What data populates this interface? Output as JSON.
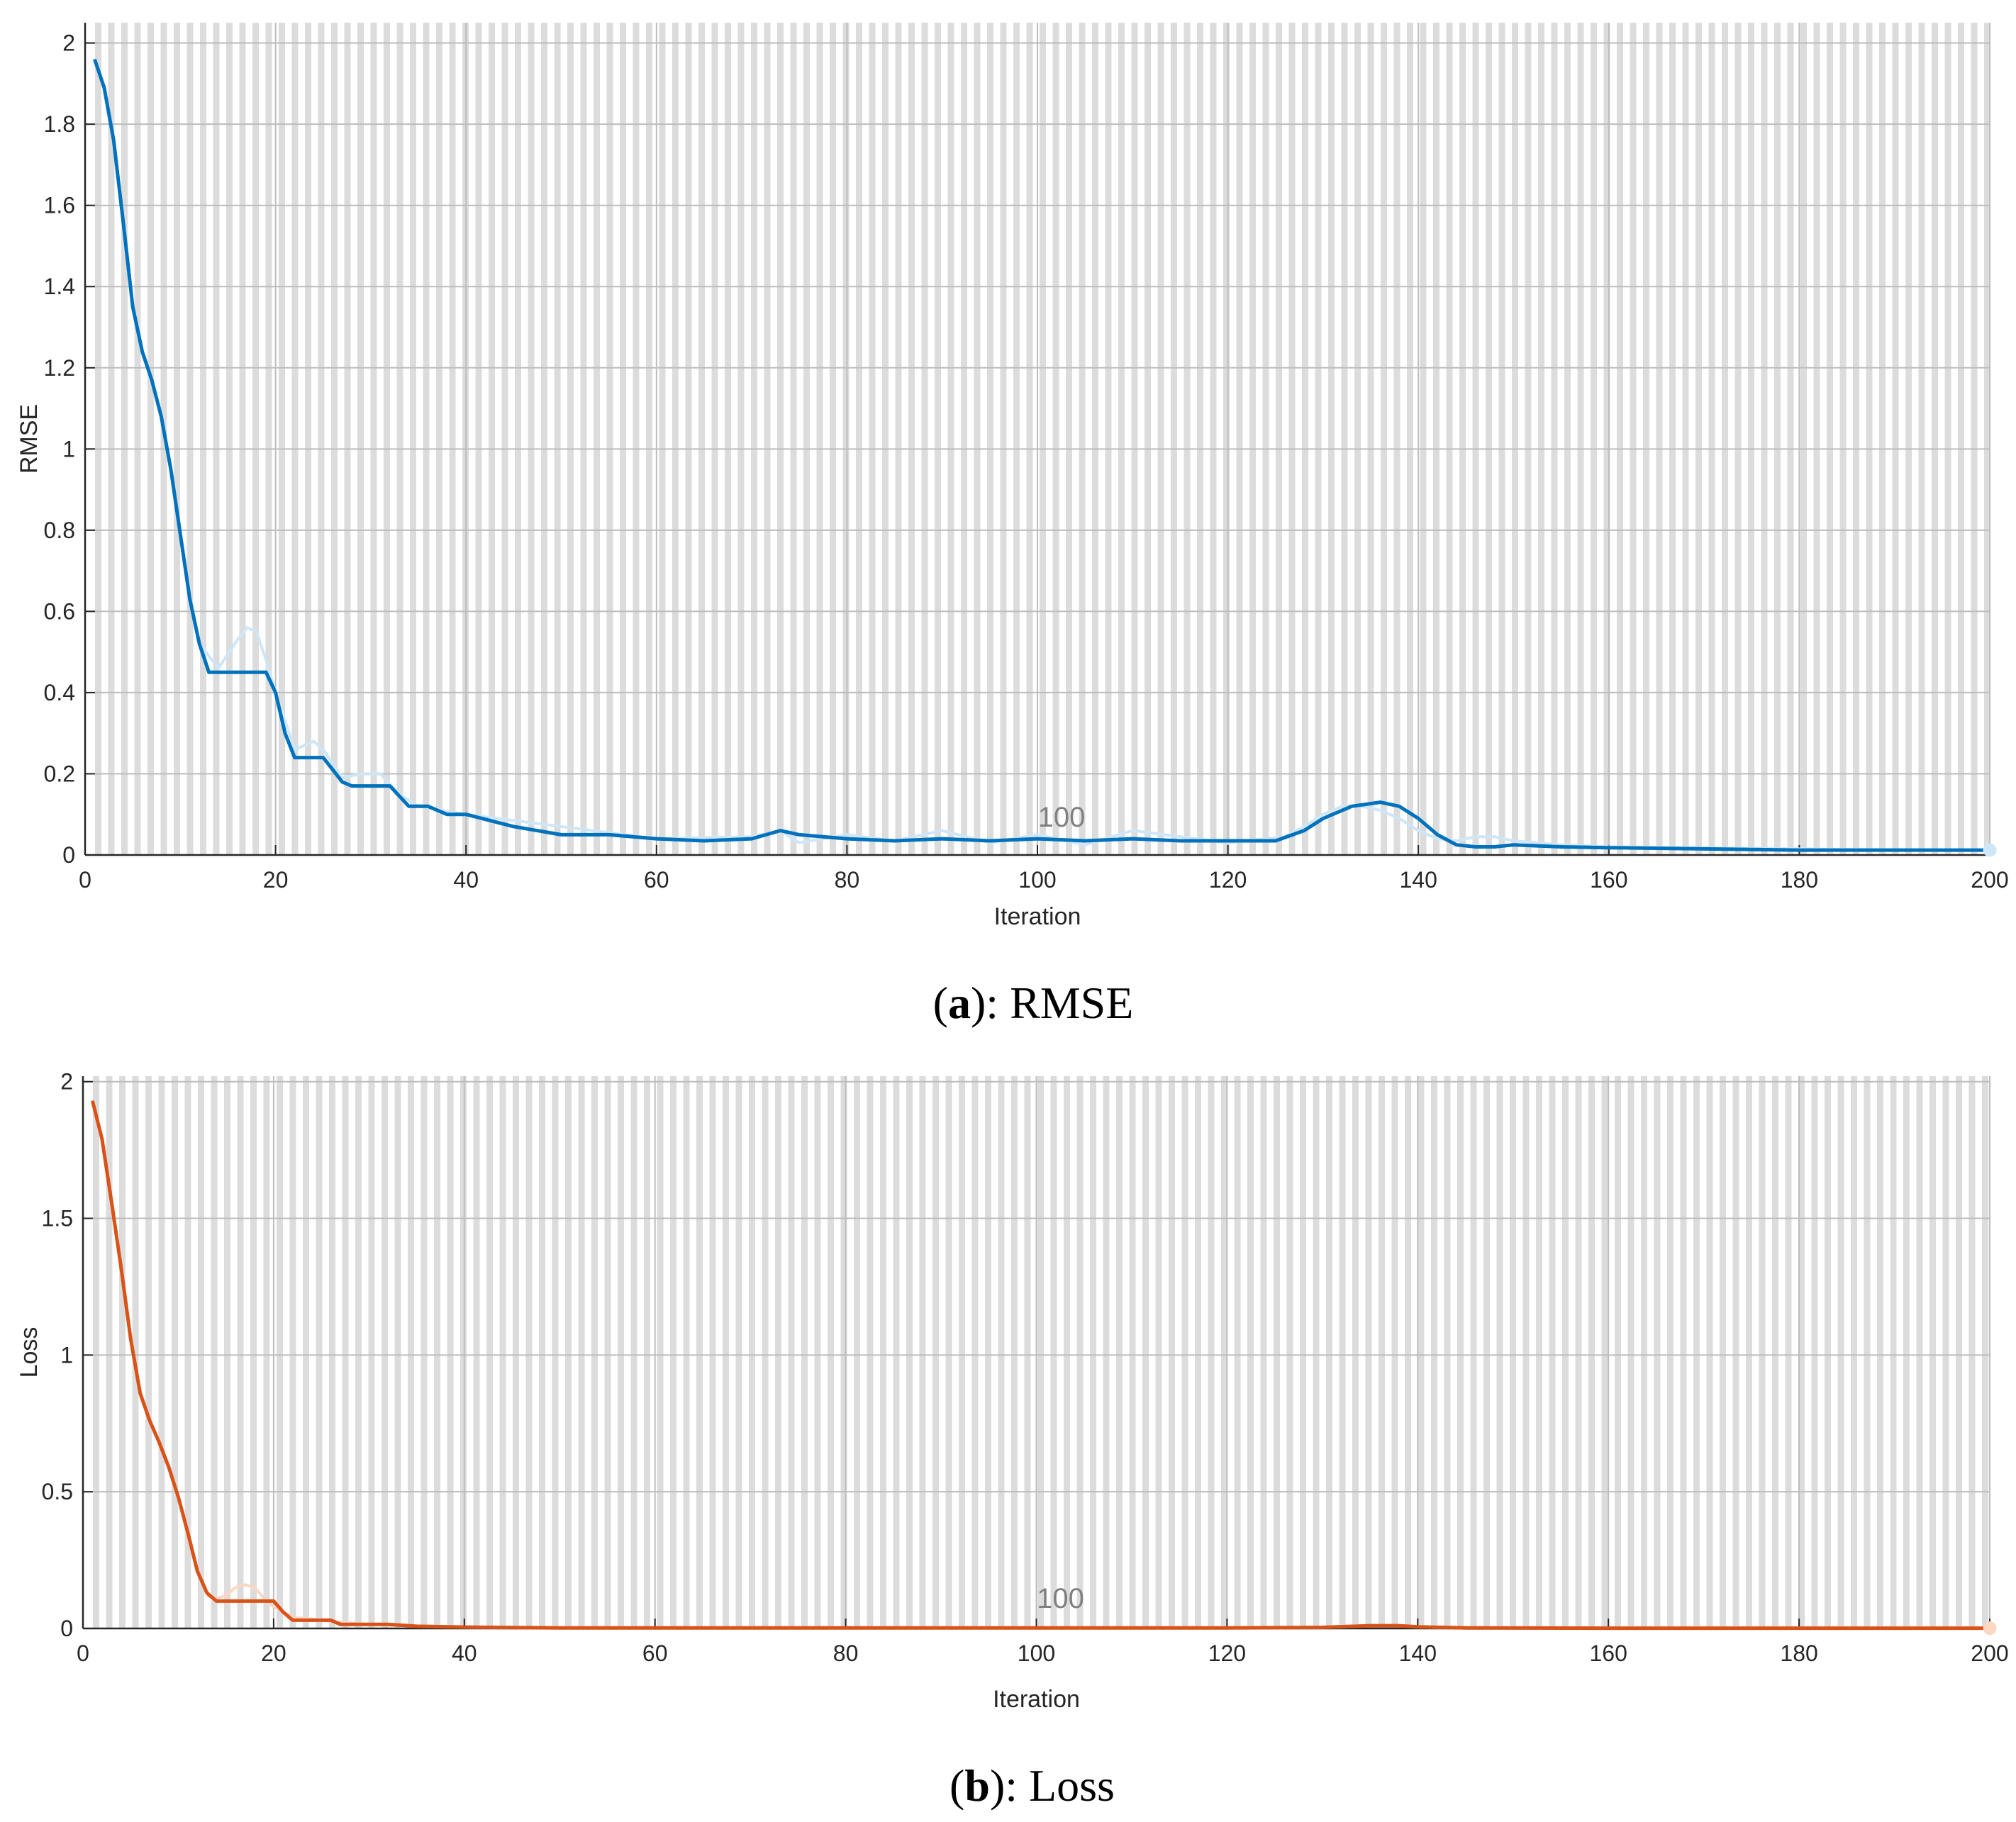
{
  "chart_data": [
    {
      "type": "line",
      "caption_letter": "a",
      "caption_text": "RMSE",
      "xlabel": "Iteration",
      "ylabel": "RMSE",
      "xlim": [
        0,
        200
      ],
      "ylim": [
        0,
        2.05
      ],
      "xticks": [
        0,
        20,
        40,
        60,
        80,
        100,
        120,
        140,
        160,
        180,
        200
      ],
      "xtick_labels": [
        "0",
        "20",
        "40",
        "60",
        "80",
        "100",
        "120",
        "140",
        "160",
        "180",
        "200"
      ],
      "yticks": [
        0,
        0.2,
        0.4,
        0.6,
        0.8,
        1,
        1.2,
        1.4,
        1.6,
        1.8,
        2
      ],
      "ytick_labels": [
        "0",
        "0.2",
        "0.4",
        "0.6",
        "0.8",
        "1",
        "1.2",
        "1.4",
        "1.6",
        "1.8",
        "2"
      ],
      "annotation": "100",
      "grid": true,
      "line_color": "#0072BD",
      "raw_color": "#cfe6f7",
      "series": [
        {
          "role": "smoothed",
          "x": [
            1,
            2,
            3,
            4,
            5,
            6,
            7,
            8,
            9,
            10,
            11,
            12,
            13,
            14,
            15,
            16,
            17,
            18,
            19,
            20,
            21,
            22,
            23,
            24,
            25,
            26,
            27,
            28,
            30,
            32,
            34,
            36,
            38,
            40,
            45,
            50,
            55,
            60,
            65,
            70,
            73,
            75,
            80,
            85,
            90,
            95,
            100,
            105,
            110,
            115,
            120,
            125,
            128,
            130,
            133,
            136,
            138,
            140,
            142,
            144,
            146,
            148,
            150,
            155,
            160,
            170,
            180,
            190,
            200
          ],
          "y": [
            1.96,
            1.89,
            1.76,
            1.56,
            1.35,
            1.24,
            1.17,
            1.08,
            0.95,
            0.79,
            0.63,
            0.52,
            0.45,
            0.45,
            0.45,
            0.45,
            0.45,
            0.45,
            0.45,
            0.4,
            0.3,
            0.24,
            0.24,
            0.24,
            0.24,
            0.21,
            0.18,
            0.17,
            0.17,
            0.17,
            0.12,
            0.12,
            0.1,
            0.1,
            0.07,
            0.05,
            0.05,
            0.04,
            0.035,
            0.04,
            0.06,
            0.05,
            0.04,
            0.035,
            0.04,
            0.035,
            0.04,
            0.035,
            0.04,
            0.035,
            0.035,
            0.035,
            0.06,
            0.09,
            0.12,
            0.13,
            0.12,
            0.09,
            0.05,
            0.025,
            0.02,
            0.02,
            0.025,
            0.02,
            0.018,
            0.015,
            0.012,
            0.012,
            0.012
          ]
        },
        {
          "role": "raw",
          "x": [
            12,
            14,
            16,
            17,
            18,
            19,
            20,
            22,
            24,
            25,
            27,
            29,
            31,
            33,
            35,
            40,
            60,
            70,
            73,
            75,
            80,
            85,
            90,
            95,
            100,
            105,
            110,
            120,
            126,
            128,
            130,
            132,
            134,
            136,
            138,
            140,
            142,
            144,
            146,
            148,
            150,
            155,
            160,
            180,
            200
          ],
          "y": [
            0.52,
            0.46,
            0.53,
            0.56,
            0.55,
            0.48,
            0.4,
            0.26,
            0.28,
            0.26,
            0.19,
            0.2,
            0.2,
            0.15,
            0.12,
            0.1,
            0.04,
            0.045,
            0.06,
            0.03,
            0.05,
            0.035,
            0.06,
            0.03,
            0.05,
            0.025,
            0.06,
            0.03,
            0.045,
            0.07,
            0.1,
            0.12,
            0.12,
            0.11,
            0.09,
            0.06,
            0.04,
            0.035,
            0.045,
            0.045,
            0.035,
            0.025,
            0.02,
            0.015,
            0.01
          ]
        }
      ]
    },
    {
      "type": "line",
      "caption_letter": "b",
      "caption_text": "Loss",
      "xlabel": "Iteration",
      "ylabel": "Loss",
      "xlim": [
        0,
        200
      ],
      "ylim": [
        0,
        2.02
      ],
      "xticks": [
        0,
        20,
        40,
        60,
        80,
        100,
        120,
        140,
        160,
        180,
        200
      ],
      "xtick_labels": [
        "0",
        "20",
        "40",
        "60",
        "80",
        "100",
        "120",
        "140",
        "160",
        "180",
        "200"
      ],
      "yticks": [
        0,
        0.5,
        1,
        1.5,
        2
      ],
      "ytick_labels": [
        "0",
        "0.5",
        "1",
        "1.5",
        "2"
      ],
      "annotation": "100",
      "grid": true,
      "line_color": "#D95319",
      "raw_color": "#fbd7c4",
      "series": [
        {
          "role": "smoothed",
          "x": [
            1,
            2,
            3,
            4,
            5,
            6,
            7,
            8,
            9,
            10,
            11,
            12,
            13,
            14,
            15,
            16,
            17,
            18,
            19,
            20,
            21,
            22,
            23,
            24,
            25,
            26,
            27,
            30,
            32,
            35,
            40,
            45,
            50,
            60,
            80,
            100,
            120,
            130,
            135,
            138,
            140,
            145,
            160,
            200
          ],
          "y": [
            1.93,
            1.79,
            1.56,
            1.32,
            1.06,
            0.86,
            0.76,
            0.68,
            0.59,
            0.48,
            0.35,
            0.21,
            0.13,
            0.1,
            0.1,
            0.1,
            0.1,
            0.1,
            0.1,
            0.1,
            0.06,
            0.03,
            0.03,
            0.03,
            0.03,
            0.03,
            0.015,
            0.015,
            0.015,
            0.008,
            0.005,
            0.003,
            0.002,
            0.002,
            0.002,
            0.002,
            0.002,
            0.004,
            0.01,
            0.01,
            0.006,
            0.002,
            0.001,
            0.001
          ]
        },
        {
          "role": "raw",
          "x": [
            13,
            14,
            15,
            16,
            17,
            18,
            19,
            20,
            22,
            24,
            26,
            28,
            30,
            35,
            40
          ],
          "y": [
            0.12,
            0.11,
            0.12,
            0.15,
            0.16,
            0.15,
            0.11,
            0.08,
            0.04,
            0.035,
            0.025,
            0.02,
            0.015,
            0.008,
            0.005
          ]
        }
      ]
    }
  ]
}
